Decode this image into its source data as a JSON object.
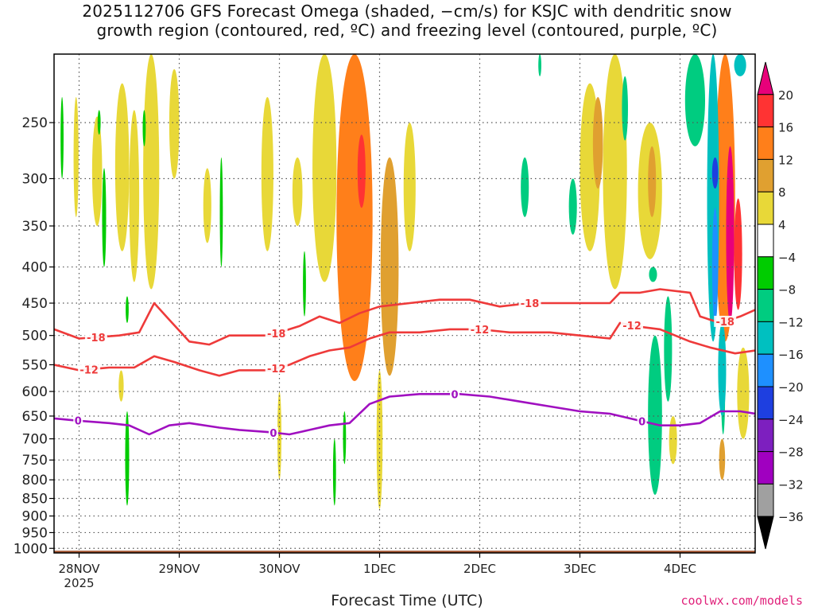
{
  "title": {
    "line1": "2025112706 GFS Forecast Omega (shaded, −cm/s) for KSJC with dendritic snow",
    "line2": "growth region (contoured, red, ºC) and freezing level (contoured, purple, ºC)"
  },
  "credit": "coolwx.com/models",
  "chart_data": {
    "type": "heatmap",
    "title": "2025112706 GFS Forecast Omega (shaded, −cm/s) for KSJC with dendritic snow growth region (contoured, red, ºC) and freezing level (contoured, purple, ºC)",
    "xlabel": "Forecast Time (UTC)",
    "ylabel": "",
    "x_ticks": [
      {
        "label": "28NOV",
        "sublabel": "2025",
        "day": 1.0
      },
      {
        "label": "29NOV",
        "sublabel": "",
        "day": 2.0
      },
      {
        "label": "30NOV",
        "sublabel": "",
        "day": 3.0
      },
      {
        "label": "1DEC",
        "sublabel": "",
        "day": 4.0
      },
      {
        "label": "2DEC",
        "sublabel": "",
        "day": 5.0
      },
      {
        "label": "3DEC",
        "sublabel": "",
        "day": 6.0
      },
      {
        "label": "4DEC",
        "sublabel": "",
        "day": 7.0
      }
    ],
    "xlim": [
      0.75,
      7.75
    ],
    "y_ticks": [
      250,
      300,
      350,
      400,
      450,
      500,
      550,
      600,
      650,
      700,
      750,
      800,
      850,
      900,
      950,
      1000
    ],
    "ylim": [
      1015,
      200
    ],
    "y_scale": "log",
    "grid": "dotted",
    "colorbar": {
      "labels": [
        "20",
        "16",
        "12",
        "8",
        "4",
        "−4",
        "−8",
        "−12",
        "−16",
        "−20",
        "−24",
        "−28",
        "−32",
        "−36"
      ],
      "colors": [
        "#e8007a",
        "#ff3333",
        "#ff7f1a",
        "#e0a030",
        "#e8d838",
        "#ffffff",
        "#00cc00",
        "#00cc80",
        "#00c0c0",
        "#1e90ff",
        "#1e3fe0",
        "#7d1fbf",
        "#a000c0",
        "#a0a0a0",
        "#000000"
      ]
    },
    "omega_blobs": [
      {
        "day": 0.97,
        "p": 285,
        "w": 0.025,
        "ptop": 230,
        "pbot": 340,
        "value": 5
      },
      {
        "day": 1.18,
        "p": 290,
        "w": 0.05,
        "ptop": 245,
        "pbot": 350,
        "value": 4
      },
      {
        "day": 1.43,
        "p": 320,
        "w": 0.07,
        "ptop": 220,
        "pbot": 380,
        "value": 5
      },
      {
        "day": 1.55,
        "p": 330,
        "w": 0.05,
        "ptop": 240,
        "pbot": 420,
        "value": 4
      },
      {
        "day": 1.72,
        "p": 250,
        "w": 0.08,
        "ptop": 200,
        "pbot": 430,
        "value": 5
      },
      {
        "day": 1.95,
        "p": 250,
        "w": 0.05,
        "ptop": 210,
        "pbot": 300,
        "value": 4
      },
      {
        "day": 2.28,
        "p": 320,
        "w": 0.04,
        "ptop": 290,
        "pbot": 370,
        "value": 4
      },
      {
        "day": 2.88,
        "p": 310,
        "w": 0.06,
        "ptop": 230,
        "pbot": 380,
        "value": 4
      },
      {
        "day": 3.0,
        "p": 700,
        "w": 0.02,
        "ptop": 600,
        "pbot": 800,
        "value": 4
      },
      {
        "day": 3.18,
        "p": 300,
        "w": 0.05,
        "ptop": 280,
        "pbot": 350,
        "value": 4
      },
      {
        "day": 3.45,
        "p": 300,
        "w": 0.12,
        "ptop": 200,
        "pbot": 420,
        "value": 6
      },
      {
        "day": 3.75,
        "p": 330,
        "w": 0.18,
        "ptop": 200,
        "pbot": 580,
        "value": 12
      },
      {
        "day": 3.82,
        "p": 290,
        "w": 0.04,
        "ptop": 260,
        "pbot": 330,
        "value": 18
      },
      {
        "day": 4.1,
        "p": 450,
        "w": 0.09,
        "ptop": 280,
        "pbot": 570,
        "value": 8
      },
      {
        "day": 4.0,
        "p": 750,
        "w": 0.03,
        "ptop": 560,
        "pbot": 880,
        "value": 4
      },
      {
        "day": 4.3,
        "p": 320,
        "w": 0.06,
        "ptop": 250,
        "pbot": 380,
        "value": 4
      },
      {
        "day": 6.1,
        "p": 270,
        "w": 0.1,
        "ptop": 220,
        "pbot": 380,
        "value": 4
      },
      {
        "day": 6.18,
        "p": 260,
        "w": 0.05,
        "ptop": 230,
        "pbot": 310,
        "value": 10
      },
      {
        "day": 6.35,
        "p": 290,
        "w": 0.12,
        "ptop": 200,
        "pbot": 430,
        "value": 5
      },
      {
        "day": 6.7,
        "p": 330,
        "w": 0.12,
        "ptop": 250,
        "pbot": 390,
        "value": 5
      },
      {
        "day": 6.72,
        "p": 290,
        "w": 0.04,
        "ptop": 270,
        "pbot": 340,
        "value": 10
      },
      {
        "day": 6.93,
        "p": 700,
        "w": 0.04,
        "ptop": 650,
        "pbot": 760,
        "value": 4
      },
      {
        "day": 7.45,
        "p": 350,
        "w": 0.1,
        "ptop": 200,
        "pbot": 510,
        "value": 12
      },
      {
        "day": 7.5,
        "p": 350,
        "w": 0.04,
        "ptop": 270,
        "pbot": 480,
        "value": 20
      },
      {
        "day": 7.58,
        "p": 380,
        "w": 0.04,
        "ptop": 320,
        "pbot": 460,
        "value": 18
      },
      {
        "day": 7.63,
        "p": 600,
        "w": 0.06,
        "ptop": 520,
        "pbot": 700,
        "value": 4
      },
      {
        "day": 7.42,
        "p": 760,
        "w": 0.03,
        "ptop": 700,
        "pbot": 800,
        "value": 8
      },
      {
        "day": 1.42,
        "p": 590,
        "w": 0.025,
        "ptop": 560,
        "pbot": 620,
        "value": 4
      }
    ],
    "omega_neg_blobs": [
      {
        "day": 0.83,
        "p": 260,
        "w": 0.015,
        "ptop": 230,
        "pbot": 300,
        "value": -6
      },
      {
        "day": 1.2,
        "p": 250,
        "w": 0.015,
        "ptop": 240,
        "pbot": 260,
        "value": -6
      },
      {
        "day": 1.25,
        "p": 330,
        "w": 0.02,
        "ptop": 290,
        "pbot": 400,
        "value": -6
      },
      {
        "day": 1.48,
        "p": 460,
        "w": 0.015,
        "ptop": 440,
        "pbot": 480,
        "value": -6
      },
      {
        "day": 1.48,
        "p": 720,
        "w": 0.02,
        "ptop": 640,
        "pbot": 870,
        "value": -6
      },
      {
        "day": 1.65,
        "p": 260,
        "w": 0.015,
        "ptop": 240,
        "pbot": 270,
        "value": -6
      },
      {
        "day": 2.42,
        "p": 330,
        "w": 0.015,
        "ptop": 280,
        "pbot": 400,
        "value": -6
      },
      {
        "day": 3.25,
        "p": 420,
        "w": 0.015,
        "ptop": 380,
        "pbot": 470,
        "value": -6
      },
      {
        "day": 3.55,
        "p": 760,
        "w": 0.015,
        "ptop": 700,
        "pbot": 870,
        "value": -6
      },
      {
        "day": 3.65,
        "p": 700,
        "w": 0.015,
        "ptop": 640,
        "pbot": 760,
        "value": -6
      },
      {
        "day": 5.45,
        "p": 310,
        "w": 0.04,
        "ptop": 280,
        "pbot": 340,
        "value": -8
      },
      {
        "day": 5.93,
        "p": 330,
        "w": 0.04,
        "ptop": 300,
        "pbot": 360,
        "value": -8
      },
      {
        "day": 5.6,
        "p": 205,
        "w": 0.015,
        "ptop": 200,
        "pbot": 215,
        "value": -8
      },
      {
        "day": 6.45,
        "p": 240,
        "w": 0.03,
        "ptop": 215,
        "pbot": 265,
        "value": -10
      },
      {
        "day": 6.73,
        "p": 410,
        "w": 0.04,
        "ptop": 400,
        "pbot": 420,
        "value": -8
      },
      {
        "day": 6.75,
        "p": 600,
        "w": 0.07,
        "ptop": 500,
        "pbot": 840,
        "value": -8
      },
      {
        "day": 6.88,
        "p": 540,
        "w": 0.04,
        "ptop": 440,
        "pbot": 620,
        "value": -8
      },
      {
        "day": 7.15,
        "p": 220,
        "w": 0.1,
        "ptop": 200,
        "pbot": 270,
        "value": -10
      },
      {
        "day": 7.33,
        "p": 280,
        "w": 0.06,
        "ptop": 200,
        "pbot": 510,
        "value": -14
      },
      {
        "day": 7.35,
        "p": 290,
        "w": 0.03,
        "ptop": 280,
        "pbot": 310,
        "value": -20
      },
      {
        "day": 7.35,
        "p": 400,
        "w": 0.03,
        "ptop": 330,
        "pbot": 480,
        "value": -16
      },
      {
        "day": 7.42,
        "p": 560,
        "w": 0.04,
        "ptop": 480,
        "pbot": 650,
        "value": -12
      },
      {
        "day": 7.6,
        "p": 205,
        "w": 0.06,
        "ptop": 200,
        "pbot": 215,
        "value": -12
      },
      {
        "day": 7.43,
        "p": 600,
        "w": 0.02,
        "ptop": 520,
        "pbot": 690,
        "value": -8
      }
    ],
    "contours": [
      {
        "name": "-18",
        "color": "#ee3a3a",
        "label_days": [
          1.17,
          2.97,
          5.5,
          7.45
        ],
        "points": [
          [
            0.75,
            490
          ],
          [
            1.0,
            505
          ],
          [
            1.4,
            500
          ],
          [
            1.6,
            495
          ],
          [
            1.75,
            450
          ],
          [
            1.9,
            475
          ],
          [
            2.1,
            510
          ],
          [
            2.3,
            515
          ],
          [
            2.5,
            500
          ],
          [
            2.9,
            500
          ],
          [
            3.2,
            485
          ],
          [
            3.4,
            470
          ],
          [
            3.6,
            480
          ],
          [
            3.8,
            465
          ],
          [
            4.0,
            455
          ],
          [
            4.3,
            450
          ],
          [
            4.6,
            445
          ],
          [
            4.9,
            445
          ],
          [
            5.2,
            455
          ],
          [
            5.5,
            450
          ],
          [
            5.8,
            450
          ],
          [
            6.0,
            450
          ],
          [
            6.3,
            450
          ],
          [
            6.4,
            435
          ],
          [
            6.6,
            435
          ],
          [
            6.8,
            430
          ],
          [
            7.1,
            435
          ],
          [
            7.2,
            470
          ],
          [
            7.4,
            480
          ],
          [
            7.6,
            470
          ],
          [
            7.75,
            460
          ]
        ]
      },
      {
        "name": "-12",
        "color": "#ee3a3a",
        "label_days": [
          1.1,
          2.97,
          5.0,
          6.52
        ],
        "points": [
          [
            0.75,
            550
          ],
          [
            1.0,
            560
          ],
          [
            1.3,
            555
          ],
          [
            1.55,
            555
          ],
          [
            1.75,
            535
          ],
          [
            1.95,
            545
          ],
          [
            2.2,
            560
          ],
          [
            2.4,
            570
          ],
          [
            2.6,
            560
          ],
          [
            2.9,
            560
          ],
          [
            3.1,
            550
          ],
          [
            3.3,
            535
          ],
          [
            3.5,
            525
          ],
          [
            3.7,
            520
          ],
          [
            3.9,
            505
          ],
          [
            4.1,
            495
          ],
          [
            4.4,
            495
          ],
          [
            4.7,
            490
          ],
          [
            5.0,
            490
          ],
          [
            5.3,
            495
          ],
          [
            5.7,
            495
          ],
          [
            6.0,
            500
          ],
          [
            6.3,
            505
          ],
          [
            6.4,
            480
          ],
          [
            6.55,
            485
          ],
          [
            6.8,
            490
          ],
          [
            7.1,
            510
          ],
          [
            7.3,
            520
          ],
          [
            7.55,
            530
          ],
          [
            7.75,
            525
          ]
        ]
      },
      {
        "name": "0",
        "color": "#a010c0",
        "label_days": [
          0.99,
          2.94,
          4.75,
          6.62
        ],
        "points": [
          [
            0.75,
            655
          ],
          [
            1.0,
            660
          ],
          [
            1.3,
            665
          ],
          [
            1.5,
            670
          ],
          [
            1.7,
            690
          ],
          [
            1.9,
            670
          ],
          [
            2.1,
            665
          ],
          [
            2.4,
            675
          ],
          [
            2.6,
            680
          ],
          [
            2.9,
            685
          ],
          [
            3.1,
            690
          ],
          [
            3.3,
            680
          ],
          [
            3.5,
            670
          ],
          [
            3.7,
            665
          ],
          [
            3.9,
            625
          ],
          [
            4.1,
            610
          ],
          [
            4.4,
            605
          ],
          [
            4.8,
            605
          ],
          [
            5.1,
            610
          ],
          [
            5.4,
            620
          ],
          [
            5.7,
            630
          ],
          [
            6.0,
            640
          ],
          [
            6.3,
            645
          ],
          [
            6.6,
            660
          ],
          [
            6.8,
            670
          ],
          [
            7.0,
            670
          ],
          [
            7.2,
            665
          ],
          [
            7.4,
            640
          ],
          [
            7.6,
            640
          ],
          [
            7.75,
            645
          ]
        ]
      }
    ]
  }
}
